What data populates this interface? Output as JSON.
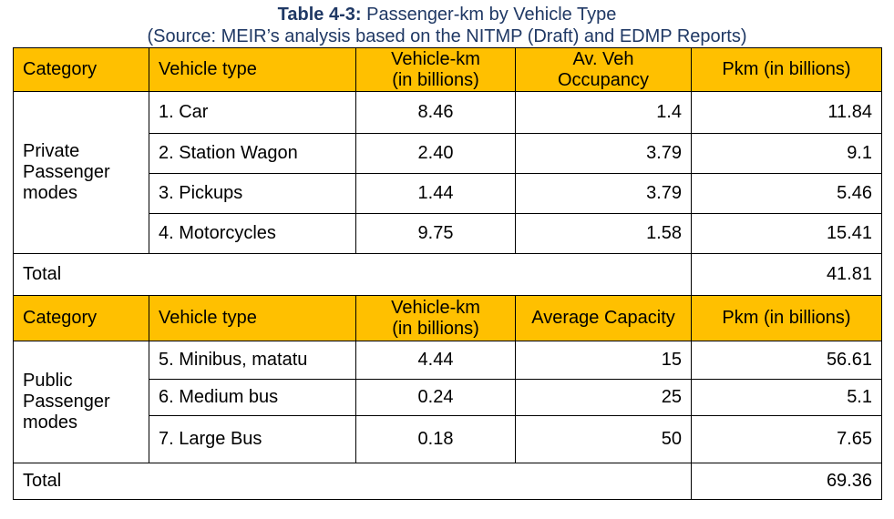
{
  "caption": {
    "label": "Table 4-3:",
    "title": " Passenger-km by Vehicle Type",
    "source": "(Source: MEIR’s analysis based on the NITMP (Draft) and EDMP Reports)"
  },
  "private": {
    "headers": {
      "category": "Category",
      "vehicle_type": "Vehicle type",
      "veh_km_1": "Vehicle-km",
      "veh_km_2": "(in billions)",
      "occ_1": "Av. Veh",
      "occ_2": "Occupancy",
      "pkm": "Pkm (in billions)"
    },
    "category_lines": [
      "Private",
      "Passenger",
      "modes"
    ],
    "rows": [
      {
        "type": "1. Car",
        "veh_km": "8.46",
        "factor": "1.4",
        "pkm": "11.84"
      },
      {
        "type": "2. Station Wagon",
        "veh_km": "2.40",
        "factor": "3.79",
        "pkm": "9.1"
      },
      {
        "type": "3. Pickups",
        "veh_km": "1.44",
        "factor": "3.79",
        "pkm": "5.46"
      },
      {
        "type": "4. Motorcycles",
        "veh_km": "9.75",
        "factor": "1.58",
        "pkm": "15.41"
      }
    ],
    "total_label": "Total",
    "total_value": "41.81"
  },
  "public": {
    "headers": {
      "category": "Category",
      "vehicle_type": "Vehicle type",
      "veh_km_1": "Vehicle-km",
      "veh_km_2": "(in billions)",
      "capacity": "Average Capacity",
      "pkm": "Pkm (in billions)"
    },
    "category_lines": [
      "Public",
      "Passenger",
      "modes"
    ],
    "rows": [
      {
        "type": "5. Minibus, matatu",
        "veh_km": "4.44",
        "factor": "15",
        "pkm": "56.61"
      },
      {
        "type": "6. Medium bus",
        "veh_km": "0.24",
        "factor": "25",
        "pkm": "5.1"
      },
      {
        "type": "7. Large Bus",
        "veh_km": "0.18",
        "factor": "50",
        "pkm": "7.65"
      }
    ],
    "total_label": "Total",
    "total_value": "69.36"
  }
}
